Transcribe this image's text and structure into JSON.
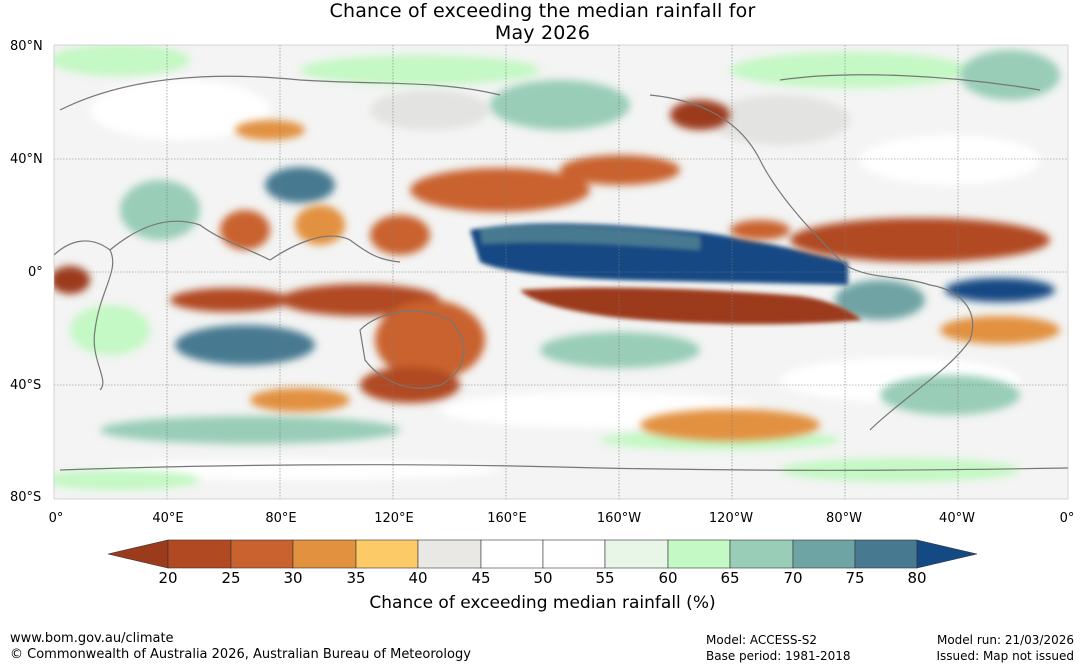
{
  "title": {
    "line1": "Chance of exceeding the median rainfall for",
    "line2": "May 2026"
  },
  "map": {
    "lat_labels": [
      "80°N",
      "40°N",
      "0°",
      "40°S",
      "80°S"
    ],
    "lon_labels": [
      "0°",
      "40°E",
      "80°E",
      "120°E",
      "160°E",
      "160°W",
      "120°W",
      "80°W",
      "40°W",
      "0°"
    ],
    "regions": {
      "pacific_equator": "wetter (above 75%)",
      "central_pacific_south": "drier (below 25%)",
      "maritime_continent": "drier (below 25%)"
    }
  },
  "colorbar": {
    "ticks": [
      "20",
      "25",
      "30",
      "35",
      "40",
      "45",
      "50",
      "55",
      "60",
      "65",
      "70",
      "75",
      "80"
    ],
    "colors": [
      "#9c3a1c",
      "#b14a23",
      "#c9622e",
      "#e2913f",
      "#fcca66",
      "#e9e8e5",
      "#ffffff",
      "#ffffff",
      "#e8f6e8",
      "#c4f8c4",
      "#99cdb8",
      "#6fa4a4",
      "#477991",
      "#144a84"
    ],
    "label": "Chance of exceeding median rainfall (%)"
  },
  "footer": {
    "website": "www.bom.gov.au/climate",
    "copyright": "© Commonwealth of Australia 2026, Australian Bureau of Meteorology",
    "model": "Model: ACCESS-S2",
    "base_period": "Base period: 1981-2018",
    "model_run": "Model run: 21/03/2026",
    "issued": "Issued: Map not issued"
  }
}
